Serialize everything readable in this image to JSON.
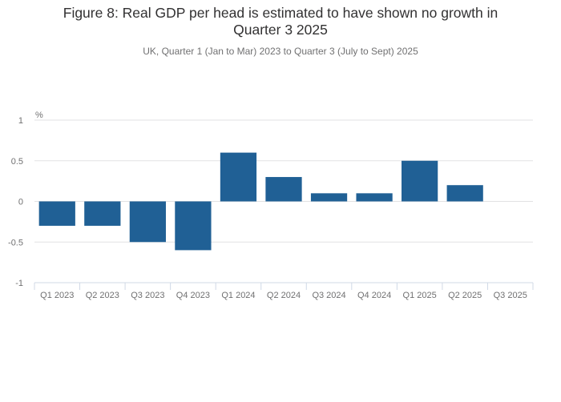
{
  "chart_data": {
    "type": "bar",
    "title": "Figure 8: Real GDP per head is estimated to have shown no growth in Quarter 3 2025",
    "title_lines": [
      "Figure 8: Real GDP per head is estimated to have shown no growth in",
      "Quarter 3 2025"
    ],
    "subtitle": "UK, Quarter 1 (Jan to Mar) 2023 to Quarter 3 (July to Sept) 2025",
    "xlabel": "",
    "ylabel": "%",
    "categories": [
      "Q1 2023",
      "Q2 2023",
      "Q3 2023",
      "Q4 2023",
      "Q1 2024",
      "Q2 2024",
      "Q3 2024",
      "Q4 2024",
      "Q1 2025",
      "Q2 2025",
      "Q3 2025"
    ],
    "values": [
      -0.3,
      -0.3,
      -0.5,
      -0.6,
      0.6,
      0.3,
      0.1,
      0.1,
      0.5,
      0.2,
      0.0
    ],
    "ylim": [
      -1,
      1
    ],
    "yticks": [
      1,
      0.5,
      0,
      -0.5,
      -1
    ],
    "ytick_labels": [
      "1",
      "0.5",
      "0",
      "-0.5",
      "-1"
    ],
    "grid": true,
    "legend": "none",
    "colors": {
      "bar": "#206095",
      "grid": "#e2e2e3",
      "axis": "#d0d9e6",
      "text": "#707071",
      "title": "#323132"
    }
  }
}
